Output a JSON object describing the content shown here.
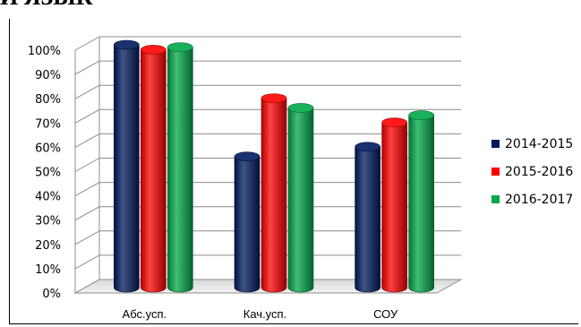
{
  "page": {
    "top_caption": "Й ЯЗЫК"
  },
  "chart_data": {
    "type": "bar",
    "style": "3d-cylinder",
    "categories": [
      "Абс.усп.",
      "Кач.усп.",
      "СОУ"
    ],
    "series": [
      {
        "name": "2014-2015",
        "color": "#001a5e",
        "values": [
          100,
          54,
          58
        ]
      },
      {
        "name": "2015-2016",
        "color": "#ff0000",
        "values": [
          98,
          78,
          68
        ]
      },
      {
        "name": "2016-2017",
        "color": "#00a84a",
        "values": [
          99,
          74,
          71
        ]
      }
    ],
    "y_ticks": [
      "0%",
      "10%",
      "20%",
      "30%",
      "40%",
      "50%",
      "60%",
      "70%",
      "80%",
      "90%",
      "100%"
    ],
    "ylim": [
      0,
      100
    ],
    "grid": true,
    "legend": "right"
  }
}
